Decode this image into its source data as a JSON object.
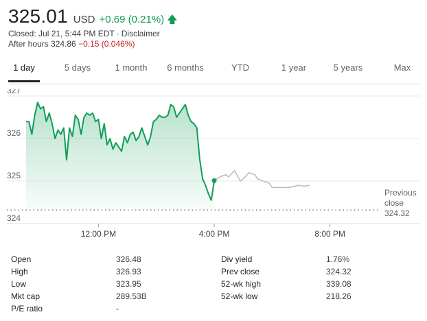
{
  "quote": {
    "price": "325.01",
    "currency": "USD",
    "change": "+0.69 (0.21%)",
    "closed_text": "Closed: Jul 21, 5:44 PM EDT",
    "separator": "·",
    "disclaimer": "Disclaimer",
    "after_hours_label": "After hours 324.86",
    "after_hours_change": "−0.15 (0.046%)",
    "up_color": "#0f9d58",
    "down_color": "#c5221f",
    "arrow_icon": "arrow-up-icon"
  },
  "tabs": [
    {
      "label": "1 day",
      "active": true
    },
    {
      "label": "5 days",
      "active": false
    },
    {
      "label": "1 month",
      "active": false
    },
    {
      "label": "6 months",
      "active": false
    },
    {
      "label": "YTD",
      "active": false
    },
    {
      "label": "1 year",
      "active": false
    },
    {
      "label": "5 years",
      "active": false
    },
    {
      "label": "Max",
      "active": false
    }
  ],
  "chart_data": {
    "type": "area",
    "title": "",
    "xlabel": "",
    "ylabel": "",
    "ylim": [
      324,
      327
    ],
    "y_ticks": [
      "327",
      "326",
      "325",
      "324"
    ],
    "x_ticks": [
      "12:00 PM",
      "4:00 PM",
      "8:00 PM"
    ],
    "previous_close": {
      "label_line1": "Previous",
      "label_line2": "close",
      "value": "324.32"
    },
    "line_color": "#0f9d58",
    "after_hours_color": "#bdbdbd",
    "series": [
      {
        "session": "regular",
        "x": [
          9.5,
          9.6,
          9.7,
          9.8,
          9.9,
          10.0,
          10.1,
          10.2,
          10.3,
          10.4,
          10.5,
          10.6,
          10.7,
          10.8,
          10.9,
          11.0,
          11.1,
          11.2,
          11.3,
          11.4,
          11.5,
          11.6,
          11.7,
          11.8,
          11.9,
          12.0,
          12.1,
          12.2,
          12.3,
          12.4,
          12.5,
          12.6,
          12.7,
          12.8,
          12.9,
          13.0,
          13.1,
          13.2,
          13.3,
          13.4,
          13.5,
          13.6,
          13.7,
          13.8,
          13.9,
          14.0,
          14.1,
          14.2,
          14.3,
          14.4,
          14.5,
          14.6,
          14.7,
          14.8,
          14.9,
          15.0,
          15.1,
          15.2,
          15.3,
          15.4,
          15.5,
          15.6,
          15.7,
          15.8,
          15.9,
          16.0
        ],
        "y": [
          326.4,
          326.4,
          326.1,
          326.55,
          326.85,
          326.7,
          326.75,
          326.4,
          326.6,
          326.35,
          326.0,
          326.2,
          326.1,
          326.25,
          325.5,
          326.25,
          326.05,
          326.55,
          326.45,
          326.1,
          326.5,
          326.6,
          326.55,
          326.6,
          326.4,
          326.45,
          326.0,
          326.35,
          325.85,
          326.0,
          325.75,
          325.9,
          325.8,
          325.7,
          326.05,
          325.9,
          326.1,
          326.15,
          325.95,
          326.05,
          326.25,
          326.05,
          325.85,
          326.05,
          326.4,
          326.45,
          326.55,
          326.5,
          326.5,
          326.55,
          326.8,
          326.75,
          326.5,
          326.6,
          326.7,
          326.8,
          326.55,
          326.4,
          326.35,
          326.25,
          325.5,
          325.05,
          324.9,
          324.7,
          324.55,
          325.0
        ],
        "close": 325.01
      },
      {
        "session": "after-hours",
        "x": [
          16.0,
          16.2,
          16.4,
          16.5,
          16.7,
          16.9,
          17.0,
          17.2,
          17.4,
          17.5,
          17.7,
          17.9,
          18.0,
          18.3,
          18.6,
          18.9,
          19.1,
          19.3
        ],
        "y": [
          325.01,
          325.1,
          325.15,
          325.1,
          325.25,
          325.0,
          325.05,
          325.2,
          325.15,
          325.05,
          325.0,
          324.95,
          324.85,
          324.85,
          324.85,
          324.9,
          324.88,
          324.9
        ]
      }
    ]
  },
  "stats": {
    "left": [
      {
        "label": "Open",
        "value": "326.48"
      },
      {
        "label": "High",
        "value": "326.93"
      },
      {
        "label": "Low",
        "value": "323.95"
      },
      {
        "label": "Mkt cap",
        "value": "289.53B"
      },
      {
        "label": "P/E ratio",
        "value": "-"
      }
    ],
    "right": [
      {
        "label": "Div yield",
        "value": "1.76%"
      },
      {
        "label": "Prev close",
        "value": "324.32"
      },
      {
        "label": "52-wk high",
        "value": "339.08"
      },
      {
        "label": "52-wk low",
        "value": "218.26"
      }
    ]
  }
}
